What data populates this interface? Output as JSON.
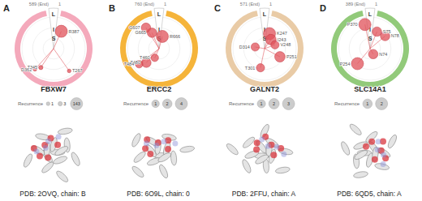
{
  "chart_data": [
    {
      "type": "polar_scatter",
      "panel": "A",
      "title": "FBXW7",
      "start_label": "1",
      "end_label": "589 (End)",
      "ring_labels": [
        "L",
        "I",
        "S"
      ],
      "color": "#f4a9bb",
      "rlim": [
        0,
        1
      ],
      "thetalim": [
        0,
        360
      ],
      "labels": [
        "R387",
        "T345",
        "D362",
        "T267"
      ],
      "theta": [
        24,
        214,
        222,
        145
      ],
      "r": [
        0.6,
        0.72,
        0.88,
        0.86
      ],
      "recurrence": [
        143,
        3,
        1,
        1
      ],
      "legend_title": "Recurrence",
      "legend_sizes": [
        1,
        3,
        143
      ],
      "caption": "PDB: 2OVQ, chain: B"
    },
    {
      "type": "polar_scatter",
      "panel": "B",
      "title": "ERCC2",
      "start_label": "1",
      "end_label": "760 (End)",
      "ring_labels": [
        "L",
        "I",
        "S"
      ],
      "color": "#f5b43a",
      "rlim": [
        0,
        1
      ],
      "thetalim": [
        0,
        360
      ],
      "labels": [
        "G607",
        "G665",
        "R666",
        "T460",
        "T480",
        "T484"
      ],
      "theta": [
        328,
        336,
        15,
        205,
        222,
        232
      ],
      "r": [
        0.78,
        0.55,
        0.4,
        0.32,
        0.6,
        0.8
      ],
      "recurrence": [
        2,
        2,
        4,
        1,
        2,
        1
      ],
      "legend_title": "Recurrence",
      "legend_sizes": [
        1,
        2,
        4
      ],
      "caption": "PDB: 6O9L, chain: 0"
    },
    {
      "type": "polar_scatter",
      "panel": "C",
      "title": "GALNT2",
      "start_label": "1",
      "end_label": "571 (End)",
      "ring_labels": [
        "L",
        "I",
        "S"
      ],
      "color": "#e9cba6",
      "rlim": [
        0,
        1
      ],
      "thetalim": [
        0,
        360
      ],
      "labels": [
        "K247",
        "I243",
        "V248",
        "D314",
        "T301",
        "P251"
      ],
      "theta": [
        18,
        35,
        70,
        280,
        192,
        118
      ],
      "r": [
        0.5,
        0.35,
        0.35,
        0.3,
        0.62,
        0.55
      ],
      "recurrence": [
        3,
        2,
        1,
        1,
        1,
        2
      ],
      "legend_title": "Recurrence",
      "legend_sizes": [
        1,
        2,
        3
      ],
      "caption": "PDB: 2FFU, chain: A"
    },
    {
      "type": "polar_scatter",
      "panel": "D",
      "title": "SLC14A1",
      "start_label": "1",
      "end_label": "389 (End)",
      "ring_labels": [
        "L",
        "I",
        "S"
      ],
      "color": "#92ca7a",
      "rlim": [
        0,
        1
      ],
      "thetalim": [
        0,
        360
      ],
      "labels": [
        "P370",
        "S75",
        "N78",
        "N74",
        "P254"
      ],
      "theta": [
        348,
        22,
        50,
        150,
        220
      ],
      "r": [
        0.78,
        0.58,
        0.62,
        0.2,
        0.62
      ],
      "recurrence": [
        2,
        1,
        1,
        1,
        2
      ],
      "legend_title": "Recurrence",
      "legend_sizes": [
        1,
        2
      ],
      "caption": "PDB: 6QD5, chain: A"
    }
  ]
}
